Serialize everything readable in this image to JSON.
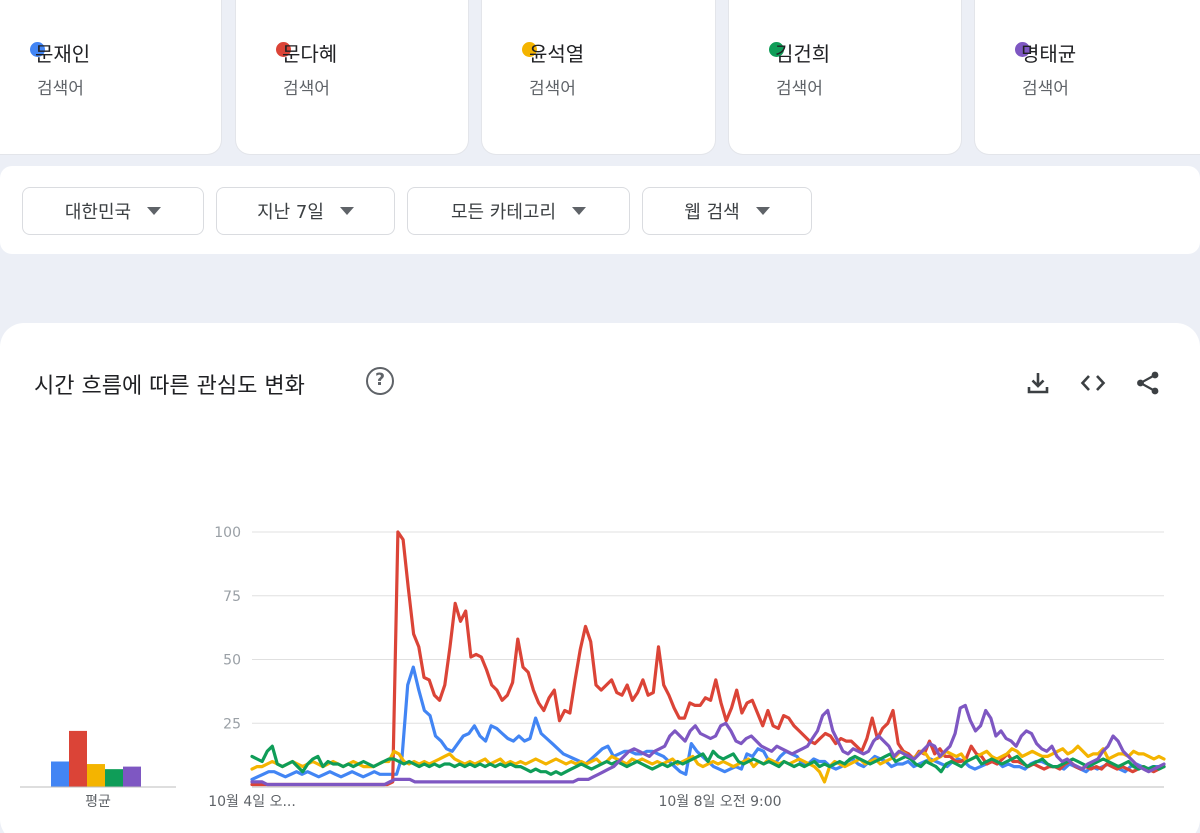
{
  "terms": [
    {
      "name": "문재인",
      "sub": "검색어",
      "color": "#4285f4"
    },
    {
      "name": "문다혜",
      "sub": "검색어",
      "color": "#db4437"
    },
    {
      "name": "윤석열",
      "sub": "검색어",
      "color": "#f4b400"
    },
    {
      "name": "김건희",
      "sub": "검색어",
      "color": "#0f9d58"
    },
    {
      "name": "명태균",
      "sub": "검색어",
      "color": "#7e57c2"
    }
  ],
  "filters": {
    "region": "대한민국",
    "period": "지난 7일",
    "category": "모든 카테고리",
    "search_type": "웹 검색"
  },
  "panel": {
    "title": "시간 흐름에 따른 관심도 변화",
    "help": "?",
    "download_icon": "download-icon",
    "embed_icon": "code-icon",
    "share_icon": "share-icon"
  },
  "chart_data": {
    "type": "line",
    "ylim": [
      0,
      100
    ],
    "yticks": [
      "100",
      "75",
      "50",
      "25"
    ],
    "x_tick_labels": [
      "10월 4일 오...",
      "10월 8일 오전 9:00"
    ],
    "average_label": "평균",
    "averages": [
      10,
      22,
      9,
      7,
      8
    ],
    "series": [
      {
        "name": "문재인",
        "color": "#4285f4",
        "values": [
          3,
          4,
          5,
          6,
          6,
          5,
          4,
          5,
          6,
          5,
          6,
          5,
          4,
          5,
          6,
          5,
          4,
          5,
          6,
          5,
          4,
          5,
          6,
          5,
          5,
          5,
          5,
          12,
          40,
          47,
          38,
          30,
          28,
          20,
          18,
          15,
          14,
          17,
          20,
          21,
          24,
          20,
          18,
          24,
          23,
          21,
          19,
          18,
          20,
          18,
          19,
          27,
          21,
          19,
          17,
          15,
          13,
          12,
          11,
          10,
          9,
          11,
          13,
          15,
          16,
          12,
          13,
          14,
          14,
          13,
          13,
          14,
          14,
          13,
          12,
          10,
          8,
          6,
          5,
          17,
          14,
          12,
          10,
          8,
          7,
          6,
          7,
          8,
          7,
          13,
          12,
          15,
          14,
          10,
          9,
          12,
          14,
          13,
          12,
          9,
          9,
          11,
          10,
          10,
          8,
          7,
          8,
          10,
          11,
          9,
          8,
          10,
          12,
          11,
          10,
          8,
          9,
          9,
          10,
          8,
          9,
          10,
          11,
          10,
          9,
          8,
          10,
          11,
          10,
          8,
          7,
          8,
          9,
          10,
          10,
          8,
          9,
          8,
          8,
          7,
          9,
          10,
          10,
          9,
          8,
          8,
          7,
          9,
          8,
          7,
          6,
          8,
          7,
          8,
          9,
          8,
          7,
          6,
          8,
          9,
          8,
          7,
          8,
          8,
          8
        ]
      },
      {
        "name": "문다혜",
        "color": "#db4437",
        "values": [
          1,
          1,
          1,
          1,
          1,
          1,
          1,
          1,
          1,
          1,
          1,
          1,
          1,
          1,
          1,
          1,
          1,
          1,
          1,
          1,
          1,
          1,
          1,
          1,
          1,
          1,
          1,
          2,
          100,
          97,
          78,
          60,
          55,
          43,
          42,
          36,
          34,
          40,
          55,
          72,
          65,
          69,
          51,
          52,
          51,
          46,
          40,
          38,
          34,
          36,
          41,
          58,
          47,
          45,
          38,
          33,
          30,
          35,
          38,
          26,
          30,
          29,
          42,
          54,
          63,
          57,
          40,
          38,
          40,
          42,
          37,
          36,
          40,
          34,
          37,
          42,
          36,
          37,
          55,
          40,
          36,
          31,
          27,
          27,
          33,
          32,
          32,
          35,
          34,
          42,
          33,
          26,
          31,
          38,
          29,
          33,
          34,
          29,
          24,
          30,
          24,
          23,
          28,
          27,
          24,
          22,
          20,
          18,
          17,
          19,
          21,
          20,
          17,
          19,
          18,
          18,
          16,
          14,
          19,
          27,
          19,
          23,
          25,
          30,
          17,
          14,
          13,
          11,
          14,
          13,
          18,
          13,
          15,
          12,
          12,
          10,
          10,
          11,
          16,
          13,
          12,
          9,
          10,
          9,
          11,
          13,
          10,
          10,
          9,
          8,
          9,
          8,
          7,
          8,
          8,
          7,
          9,
          10,
          8,
          7,
          8,
          7,
          8,
          7,
          9,
          8,
          7,
          8,
          7,
          6,
          7,
          8,
          7,
          6,
          7,
          8
        ]
      },
      {
        "name": "윤석열",
        "color": "#f4b400",
        "values": [
          7,
          8,
          8,
          9,
          10,
          9,
          8,
          9,
          10,
          9,
          8,
          9,
          10,
          9,
          8,
          9,
          10,
          9,
          8,
          9,
          10,
          9,
          8,
          8,
          8,
          9,
          10,
          10,
          14,
          13,
          10,
          9,
          10,
          9,
          10,
          9,
          10,
          11,
          12,
          13,
          11,
          10,
          9,
          10,
          9,
          10,
          11,
          9,
          10,
          11,
          9,
          10,
          9,
          10,
          9,
          10,
          11,
          10,
          9,
          10,
          11,
          10,
          9,
          10,
          9,
          10,
          9,
          10,
          11,
          9,
          10,
          12,
          11,
          10,
          9,
          11,
          10,
          11,
          10,
          9,
          10,
          9,
          10,
          11,
          9,
          10,
          11,
          12,
          9,
          8,
          9,
          10,
          9,
          10,
          9,
          8,
          9,
          10,
          11,
          8,
          10,
          9,
          11,
          10,
          9,
          10,
          9,
          10,
          11,
          10,
          9,
          8,
          6,
          2,
          8,
          10,
          9,
          8,
          9,
          10,
          11,
          9,
          10,
          11,
          9,
          10,
          11,
          12,
          14,
          13,
          11,
          12,
          14,
          13,
          10,
          11,
          12,
          14,
          13,
          12,
          13,
          10,
          11,
          12,
          13,
          14,
          12,
          11,
          12,
          13,
          15,
          14,
          12,
          13,
          14,
          13,
          12,
          12,
          13,
          14,
          15,
          13,
          14,
          16,
          14,
          12,
          13,
          13,
          15,
          11,
          12,
          13,
          13,
          12,
          14,
          13,
          13,
          12,
          11,
          12,
          11
        ]
      },
      {
        "name": "김건희",
        "color": "#0f9d58",
        "values": [
          12,
          11,
          10,
          14,
          16,
          9,
          8,
          9,
          10,
          8,
          6,
          9,
          11,
          12,
          8,
          10,
          9,
          9,
          8,
          9,
          8,
          9,
          10,
          9,
          8,
          9,
          10,
          11,
          11,
          10,
          9,
          10,
          9,
          8,
          9,
          8,
          9,
          8,
          9,
          9,
          8,
          9,
          8,
          9,
          8,
          9,
          8,
          9,
          8,
          9,
          8,
          9,
          8,
          8,
          7,
          6,
          7,
          6,
          6,
          5,
          6,
          5,
          6,
          7,
          8,
          9,
          8,
          7,
          8,
          9,
          10,
          9,
          10,
          9,
          8,
          9,
          10,
          9,
          8,
          7,
          8,
          9,
          8,
          9,
          10,
          9,
          10,
          11,
          12,
          13,
          10,
          14,
          12,
          11,
          12,
          13,
          10,
          9,
          10,
          11,
          10,
          9,
          10,
          9,
          8,
          10,
          9,
          8,
          9,
          8,
          9,
          10,
          8,
          9,
          8,
          9,
          10,
          9,
          11,
          12,
          11,
          10,
          9,
          10,
          11,
          12,
          13,
          10,
          11,
          12,
          11,
          9,
          8,
          10,
          9,
          8,
          6,
          9,
          10,
          9,
          8,
          10,
          11,
          12,
          9,
          10,
          11,
          10,
          9,
          10,
          11,
          12,
          10,
          8,
          9,
          10,
          11,
          9,
          8,
          8,
          9,
          10,
          11,
          10,
          9,
          8,
          9,
          10,
          11,
          10,
          9,
          8,
          9,
          10,
          8,
          7,
          8,
          7,
          8,
          7,
          8
        ]
      },
      {
        "name": "명태균",
        "color": "#7e57c2",
        "values": [
          2,
          2,
          2,
          1,
          1,
          1,
          1,
          1,
          1,
          1,
          1,
          1,
          1,
          1,
          1,
          1,
          1,
          1,
          1,
          1,
          1,
          1,
          1,
          1,
          1,
          1,
          1,
          2,
          3,
          3,
          3,
          3,
          2,
          2,
          2,
          2,
          2,
          2,
          2,
          2,
          2,
          2,
          2,
          2,
          2,
          2,
          2,
          2,
          2,
          2,
          2,
          2,
          2,
          2,
          2,
          2,
          2,
          2,
          2,
          2,
          2,
          2,
          2,
          2,
          3,
          3,
          3,
          4,
          5,
          6,
          7,
          8,
          10,
          12,
          14,
          15,
          14,
          13,
          12,
          14,
          15,
          16,
          20,
          22,
          20,
          18,
          22,
          24,
          21,
          20,
          19,
          20,
          24,
          25,
          22,
          18,
          17,
          19,
          20,
          18,
          16,
          15,
          14,
          16,
          15,
          14,
          13,
          14,
          15,
          16,
          19,
          22,
          28,
          30,
          22,
          18,
          14,
          13,
          15,
          14,
          13,
          14,
          18,
          20,
          18,
          16,
          12,
          14,
          13,
          12,
          11,
          13,
          15,
          17,
          16,
          12,
          14,
          16,
          21,
          31,
          32,
          26,
          22,
          24,
          30,
          27,
          20,
          22,
          19,
          18,
          16,
          20,
          22,
          21,
          17,
          15,
          14,
          16,
          12,
          10,
          11,
          9,
          8,
          7,
          9,
          10,
          11,
          14,
          16,
          20,
          18,
          14,
          12,
          10,
          8,
          7,
          6,
          7,
          8,
          9
        ]
      }
    ]
  }
}
